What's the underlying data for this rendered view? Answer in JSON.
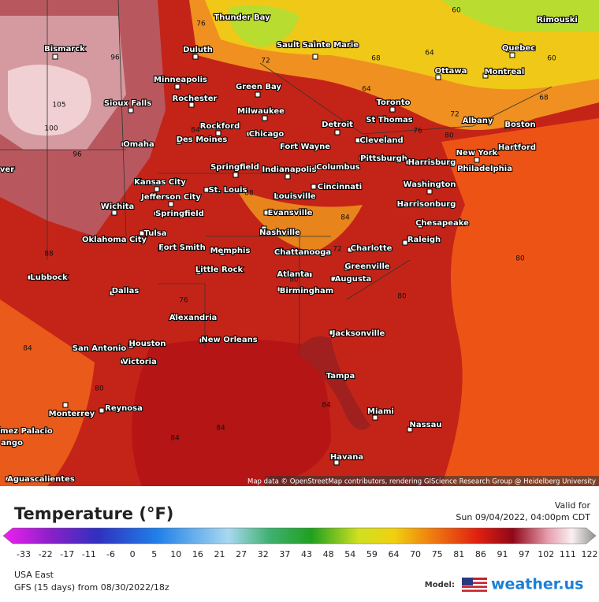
{
  "map": {
    "cities": [
      "Thunder Bay",
      "Bismarck",
      "Duluth",
      "Sault Sainte Marie",
      "Rimouski",
      "Quebec",
      "Ottawa",
      "Montreal",
      "Minneapolis",
      "Rochester",
      "Green Bay",
      "Sioux Falls",
      "Milwaukee",
      "Toronto",
      "St Thomas",
      "Albany",
      "Boston",
      "Rockford",
      "Detroit",
      "Chicago",
      "Des Moines",
      "Hartford",
      "Omaha",
      "Cleveland",
      "Fort Wayne",
      "New York",
      "Pittsburgh",
      "Harrisburg",
      "Philadelphia",
      "Springfield",
      "Indianapolis",
      "Columbus",
      "Kansas City",
      "Washington",
      "Cincinnati",
      "St. Louis",
      "Jefferson City",
      "Louisville",
      "Harrisonburg",
      "Wichita",
      "Springfield",
      "Evansville",
      "Chesapeake",
      "Tulsa",
      "Nashville",
      "Oklahoma City",
      "Raleigh",
      "Fort Smith",
      "Memphis",
      "Chattanooga",
      "Charlotte",
      "Greenville",
      "Little Rock",
      "Atlanta",
      "Augusta",
      "Lubbock",
      "Birmingham",
      "Dallas",
      "Alexandria",
      "Jacksonville",
      "San Antonio",
      "Houston",
      "New Orleans",
      "Victoria",
      "Tampa",
      "Reynosa",
      "Monterrey",
      "Miami",
      "Nassau",
      "ómez Palacio",
      "ango",
      "Havana",
      "Aguascalientes",
      "ver"
    ],
    "contour_labels": [
      105,
      100,
      96,
      96,
      76,
      72,
      68,
      64,
      60,
      60,
      64,
      68,
      72,
      76,
      80,
      84,
      88,
      84,
      72,
      80,
      76,
      80,
      80,
      84,
      84,
      84,
      80,
      84,
      88
    ],
    "attribution": "Map data © OpenStreetMap contributors, rendering GIScience Research Group @ Heidelberg University"
  },
  "legend": {
    "title": "Temperature (°F)",
    "ticks": [
      -33,
      -22,
      -17,
      -11,
      -6,
      0,
      5,
      10,
      16,
      21,
      27,
      32,
      37,
      43,
      48,
      54,
      59,
      64,
      70,
      75,
      81,
      86,
      91,
      97,
      102,
      111,
      122
    ]
  },
  "valid": {
    "label": "Valid for",
    "time": "Sun 09/04/2022, 04:00pm CDT"
  },
  "footer": {
    "region": "USA East",
    "run": "GFS (15 days) from 08/30/2022/18z",
    "model_label": "Model:",
    "brand": "weather.us"
  }
}
